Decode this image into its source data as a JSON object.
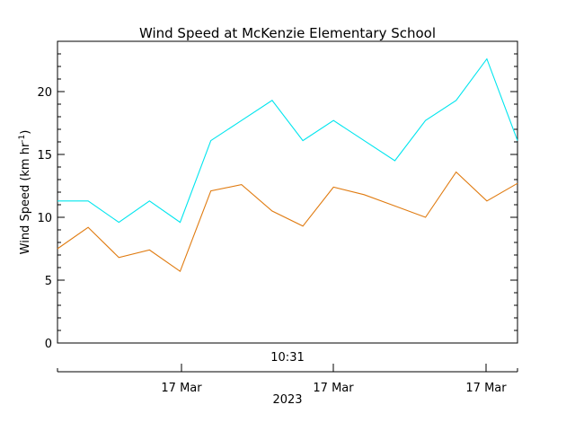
{
  "chart_data": {
    "type": "line",
    "title": "Wind Speed at McKenzie Elementary School",
    "ylabel": "Wind Speed (km hr",
    "ylabel_superscript": "-1",
    "ylabel_close": ")",
    "time_label": "10:31",
    "year_label": "2023",
    "x_tick_labels": [
      "17 Mar",
      "17 Mar",
      "17 Mar"
    ],
    "ylim": [
      0,
      24
    ],
    "y_ticks": [
      0,
      5,
      10,
      15,
      20
    ],
    "y_tick_labels": [
      "0",
      "5",
      "10",
      "15",
      "20"
    ],
    "grid": false,
    "series": [
      {
        "color": "#00e5ee",
        "values": [
          11.3,
          11.3,
          9.6,
          11.3,
          9.6,
          16.1,
          17.7,
          19.3,
          16.1,
          17.7,
          16.1,
          14.5,
          17.7,
          19.3,
          22.6,
          16.1
        ]
      },
      {
        "color": "#e07b10",
        "values": [
          7.5,
          9.2,
          6.8,
          7.4,
          5.7,
          12.1,
          12.6,
          10.5,
          9.3,
          12.4,
          11.8,
          10.9,
          10.0,
          13.6,
          11.3,
          12.7
        ]
      }
    ]
  }
}
